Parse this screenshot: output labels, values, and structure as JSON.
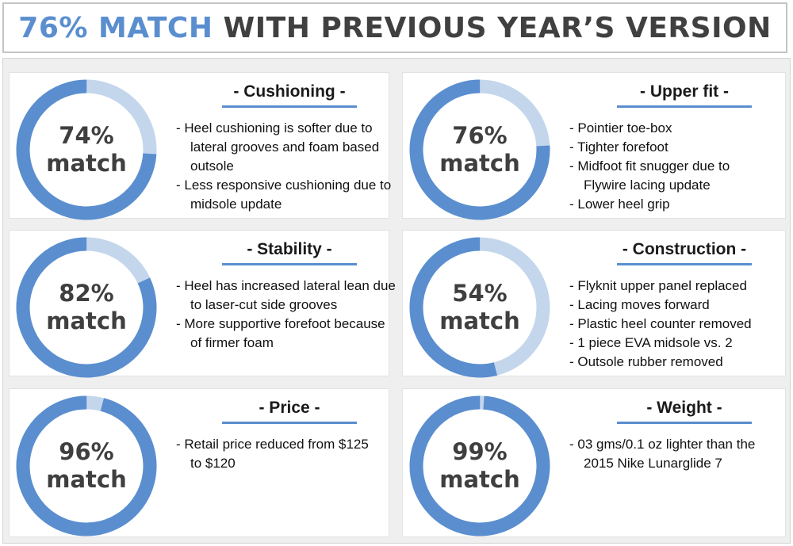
{
  "header": {
    "highlight": "76% MATCH",
    "rest": "WITH PREVIOUS YEAR’S VERSION"
  },
  "colors": {
    "primary": "#5a8ecf",
    "light": "#c3d6ec",
    "text": "#3f3f3f",
    "background": "#efefef"
  },
  "chart_data": [
    {
      "type": "pie",
      "title": "- Cushioning -",
      "value": 74,
      "label_pct": "74%",
      "label_word": "match",
      "bullets": [
        "- Heel cushioning is softer due to lateral grooves and foam based outsole",
        "- Less responsive cushioning due to midsole update"
      ]
    },
    {
      "type": "pie",
      "title": "- Upper fit -",
      "value": 76,
      "label_pct": "76%",
      "label_word": "match",
      "bullets": [
        "- Pointier toe-box",
        "- Tighter forefoot",
        "- Midfoot fit snugger due to Flywire lacing update",
        "- Lower heel grip"
      ]
    },
    {
      "type": "pie",
      "title": "- Stability -",
      "value": 82,
      "label_pct": "82%",
      "label_word": "match",
      "bullets": [
        "- Heel has increased lateral lean due to laser-cut side grooves",
        "- More supportive forefoot because of firmer foam"
      ]
    },
    {
      "type": "pie",
      "title": "- Construction -",
      "value": 54,
      "label_pct": "54%",
      "label_word": "match",
      "bullets": [
        "- Flyknit upper panel replaced",
        "- Lacing moves forward",
        "- Plastic heel counter removed",
        "- 1 piece EVA midsole vs. 2",
        "- Outsole rubber removed"
      ]
    },
    {
      "type": "pie",
      "title": "- Price -",
      "value": 96,
      "label_pct": "96%",
      "label_word": "match",
      "bullets": [
        "- Retail price reduced from $125 to $120"
      ]
    },
    {
      "type": "pie",
      "title": "- Weight -",
      "value": 99,
      "label_pct": "99%",
      "label_word": "match",
      "bullets": [
        "- 03 gms/0.1 oz lighter than the 2015 Nike Lunarglide 7"
      ]
    }
  ]
}
